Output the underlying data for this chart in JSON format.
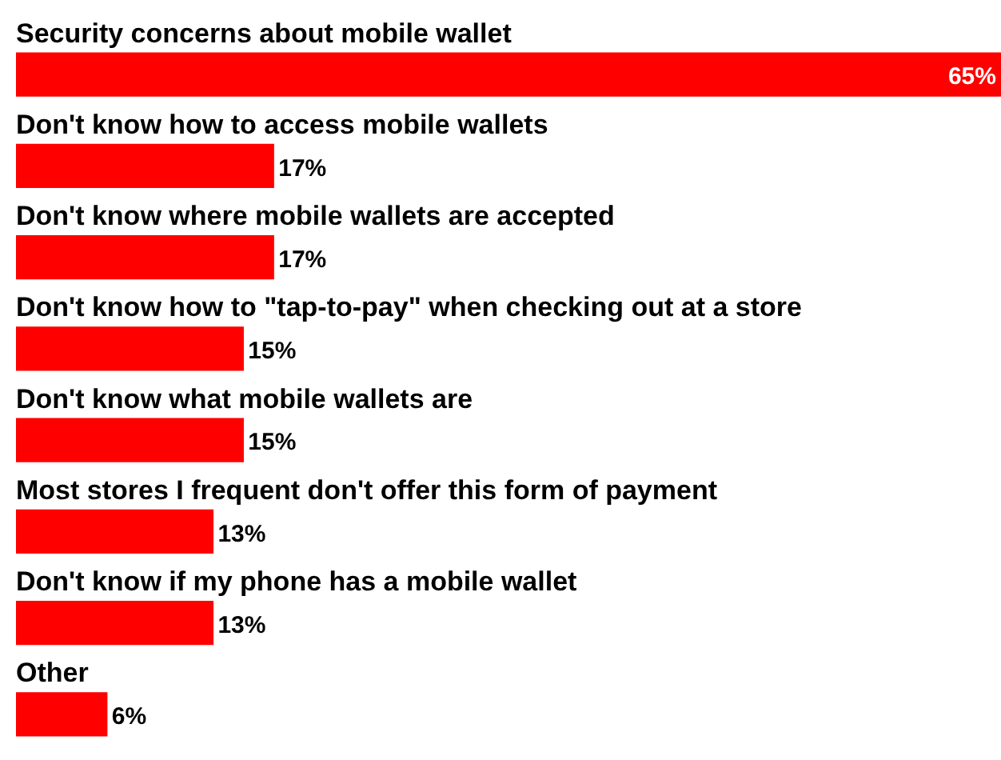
{
  "chart_data": {
    "type": "bar",
    "orientation": "horizontal",
    "categories": [
      "Security concerns about mobile wallet",
      "Don't know how to access mobile wallets",
      "Don't know where mobile wallets are accepted",
      "Don't know how to \"tap-to-pay\" when checking out at a store",
      "Don't know what mobile wallets are",
      "Most stores I frequent don't offer this form of payment",
      "Don't know if my phone has a mobile wallet",
      "Other"
    ],
    "values": [
      65,
      17,
      17,
      15,
      15,
      13,
      13,
      6
    ],
    "value_labels": [
      "65%",
      "17%",
      "17%",
      "15%",
      "15%",
      "13%",
      "13%",
      "6%"
    ],
    "color": "#ff0000",
    "legend": false,
    "tick_labels": false
  }
}
